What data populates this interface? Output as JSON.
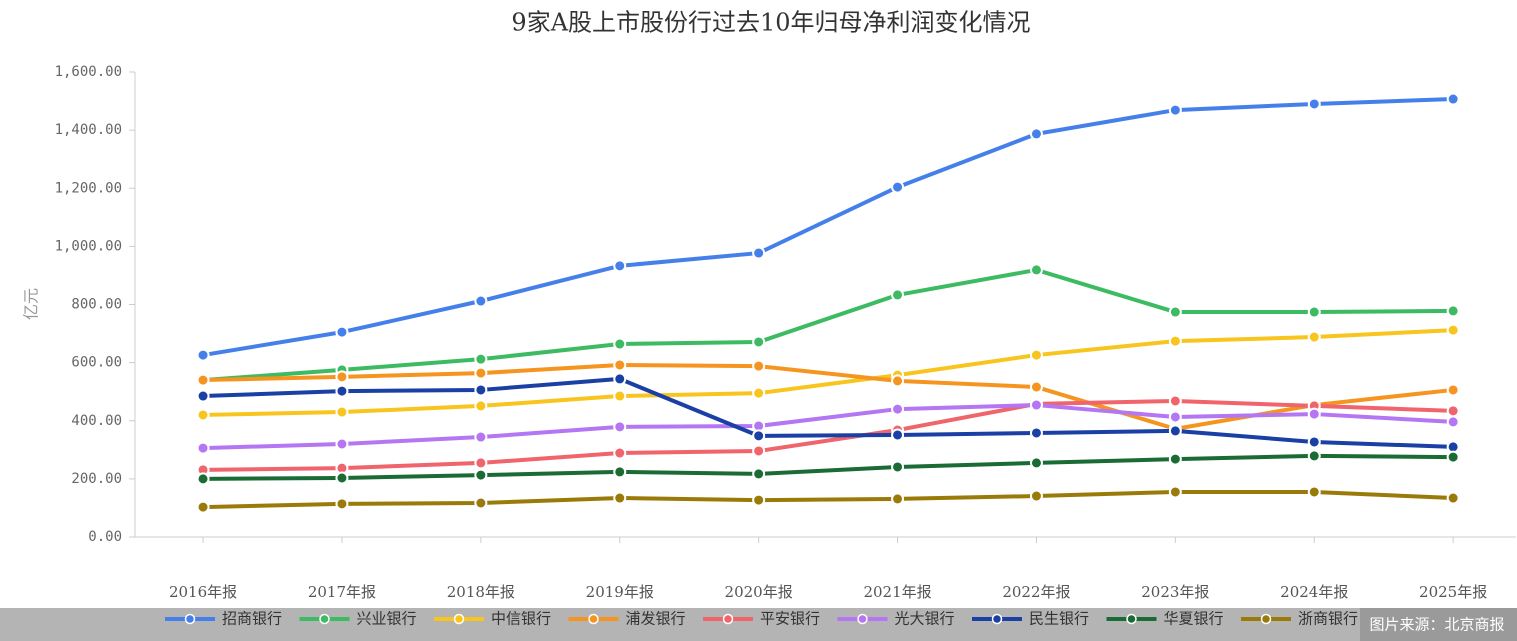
{
  "chart_data": {
    "type": "line",
    "title": "9家A股上市股份行过去10年归母净利润变化情况",
    "y_label": "亿元",
    "source": "图片来源：北京商报",
    "categories": [
      "2016年报",
      "2017年报",
      "2018年报",
      "2019年报",
      "2020年报",
      "2021年报",
      "2022年报",
      "2023年报",
      "2024年报",
      "2025年报"
    ],
    "ylim": [
      0,
      1600
    ],
    "yticks": [
      {
        "value": 0,
        "label": "0.00"
      },
      {
        "value": 200,
        "label": "200.00"
      },
      {
        "value": 400,
        "label": "400.00"
      },
      {
        "value": 600,
        "label": "600.00"
      },
      {
        "value": 800,
        "label": "800.00"
      },
      {
        "value": 1000,
        "label": "1,000.00"
      },
      {
        "value": 1200,
        "label": "1,200.00"
      },
      {
        "value": 1400,
        "label": "1,400.00"
      },
      {
        "value": 1600,
        "label": "1,600.00"
      }
    ],
    "series": [
      {
        "name": "招商银行",
        "color": "#4580ea",
        "values": [
          626,
          705,
          812,
          933,
          977,
          1204,
          1387,
          1469,
          1490,
          1507
        ]
      },
      {
        "name": "兴业银行",
        "color": "#3dbb62",
        "values": [
          540,
          575,
          612,
          664,
          671,
          833,
          919,
          774,
          774,
          778
        ]
      },
      {
        "name": "中信银行",
        "color": "#f7c51e",
        "values": [
          420,
          430,
          451,
          485,
          495,
          557,
          626,
          674,
          688,
          712
        ]
      },
      {
        "name": "浦发银行",
        "color": "#f5951f",
        "values": [
          540,
          551,
          564,
          592,
          588,
          537,
          516,
          372,
          454,
          506
        ]
      },
      {
        "name": "平安银行",
        "color": "#f0646c",
        "values": [
          231,
          237,
          255,
          289,
          296,
          368,
          458,
          468,
          451,
          434
        ]
      },
      {
        "name": "光大银行",
        "color": "#b476f2",
        "values": [
          306,
          320,
          344,
          379,
          382,
          440,
          454,
          413,
          423,
          396
        ]
      },
      {
        "name": "民生银行",
        "color": "#1a3fa5",
        "values": [
          485,
          502,
          506,
          544,
          348,
          351,
          358,
          365,
          327,
          310
        ]
      },
      {
        "name": "华夏银行",
        "color": "#1b6b35",
        "values": [
          200,
          203,
          213,
          224,
          217,
          241,
          255,
          268,
          279,
          275
        ]
      },
      {
        "name": "浙商银行",
        "color": "#9a7b0a",
        "values": [
          103,
          114,
          117,
          134,
          127,
          131,
          141,
          155,
          155,
          134
        ]
      }
    ]
  }
}
